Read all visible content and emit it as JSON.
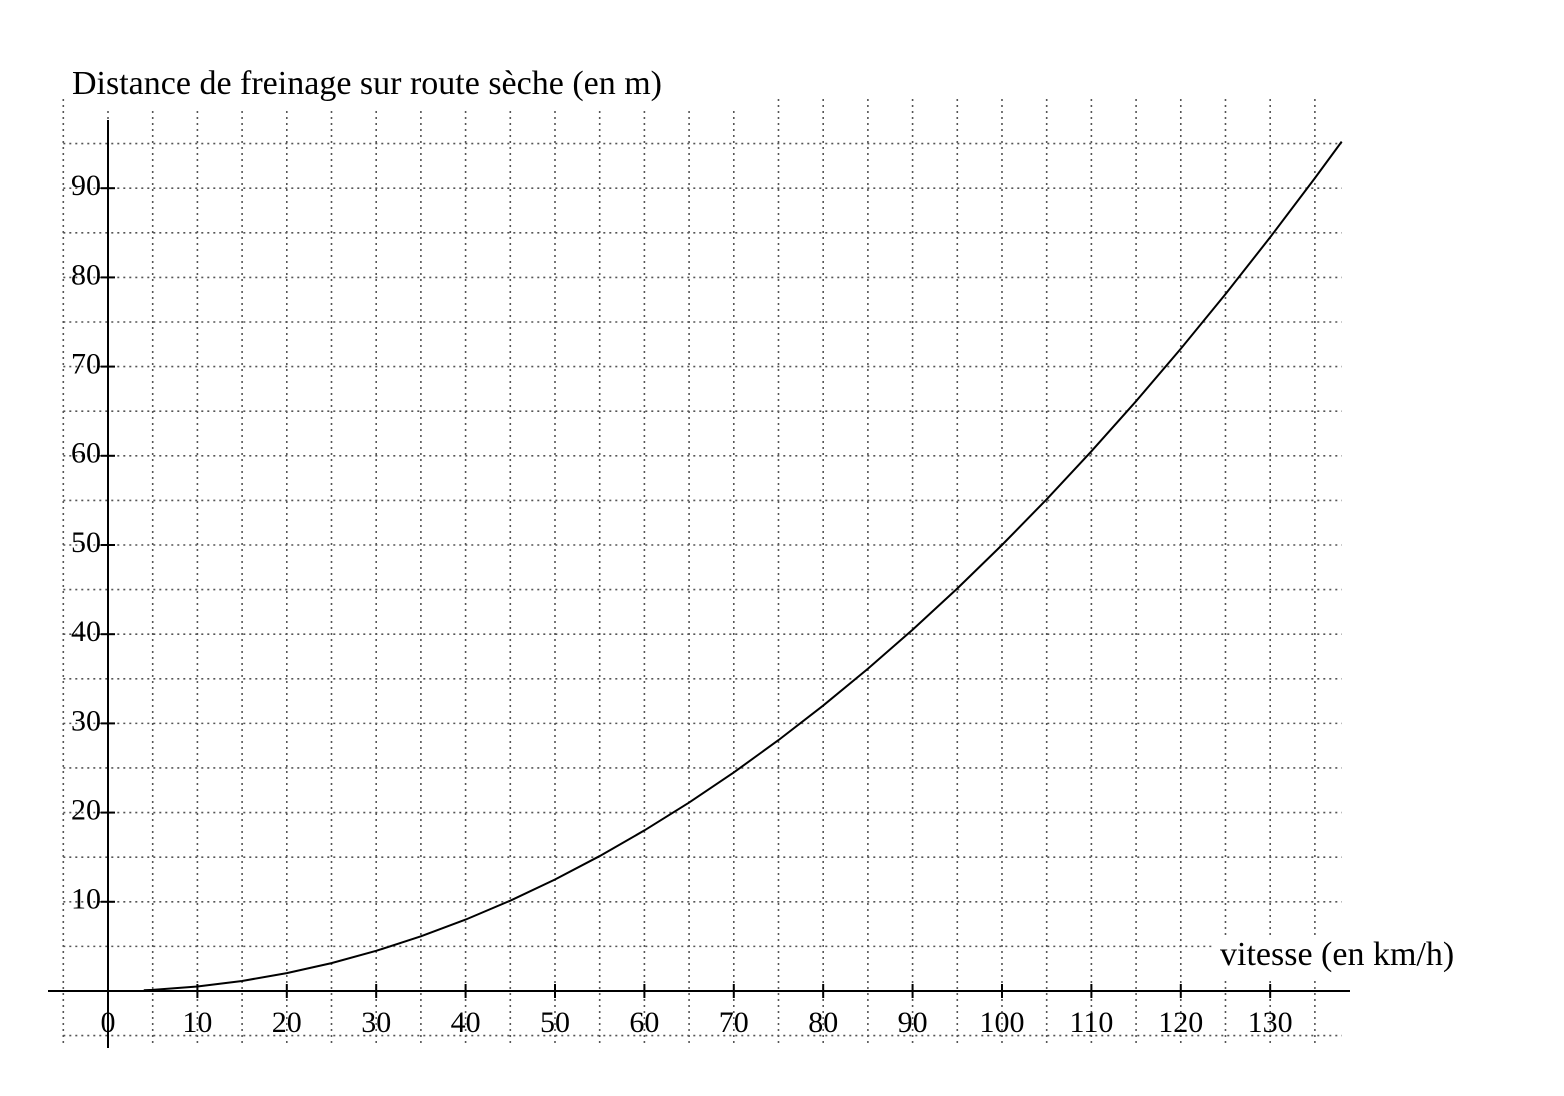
{
  "chart_data": {
    "type": "line",
    "title": "Distance de freinage sur route sèche (en m)",
    "x_label": "vitesse (en km/h)",
    "x": [
      4,
      5,
      10,
      15,
      20,
      25,
      30,
      35,
      40,
      45,
      50,
      55,
      60,
      65,
      70,
      75,
      80,
      85,
      90,
      95,
      100,
      105,
      110,
      115,
      120,
      125,
      130,
      135,
      138
    ],
    "series": [
      {
        "color": "#000000",
        "values": [
          0.08,
          0.125,
          0.5,
          1.125,
          2,
          3.125,
          4.5,
          6.125,
          8,
          10.125,
          12.5,
          15.125,
          18,
          21.125,
          24.5,
          28.125,
          32,
          36.125,
          40.5,
          45.125,
          50,
          55.125,
          60.5,
          66.125,
          72,
          78.125,
          84.5,
          91.125,
          95.22
        ]
      }
    ],
    "xlim": [
      -5,
      138
    ],
    "ylim": [
      -6,
      100
    ],
    "xticks": [
      0,
      10,
      20,
      30,
      40,
      50,
      60,
      70,
      80,
      90,
      100,
      110,
      120,
      130
    ],
    "yticks": [
      10,
      20,
      30,
      40,
      50,
      60,
      70,
      80,
      90
    ],
    "xminorticks": [
      -5,
      5,
      15,
      25,
      35,
      45,
      55,
      65,
      75,
      85,
      95,
      105,
      115,
      125,
      135
    ],
    "yminorticks": [
      -5,
      5,
      15,
      25,
      35,
      45,
      55,
      65,
      75,
      85,
      95
    ],
    "grid": true
  }
}
